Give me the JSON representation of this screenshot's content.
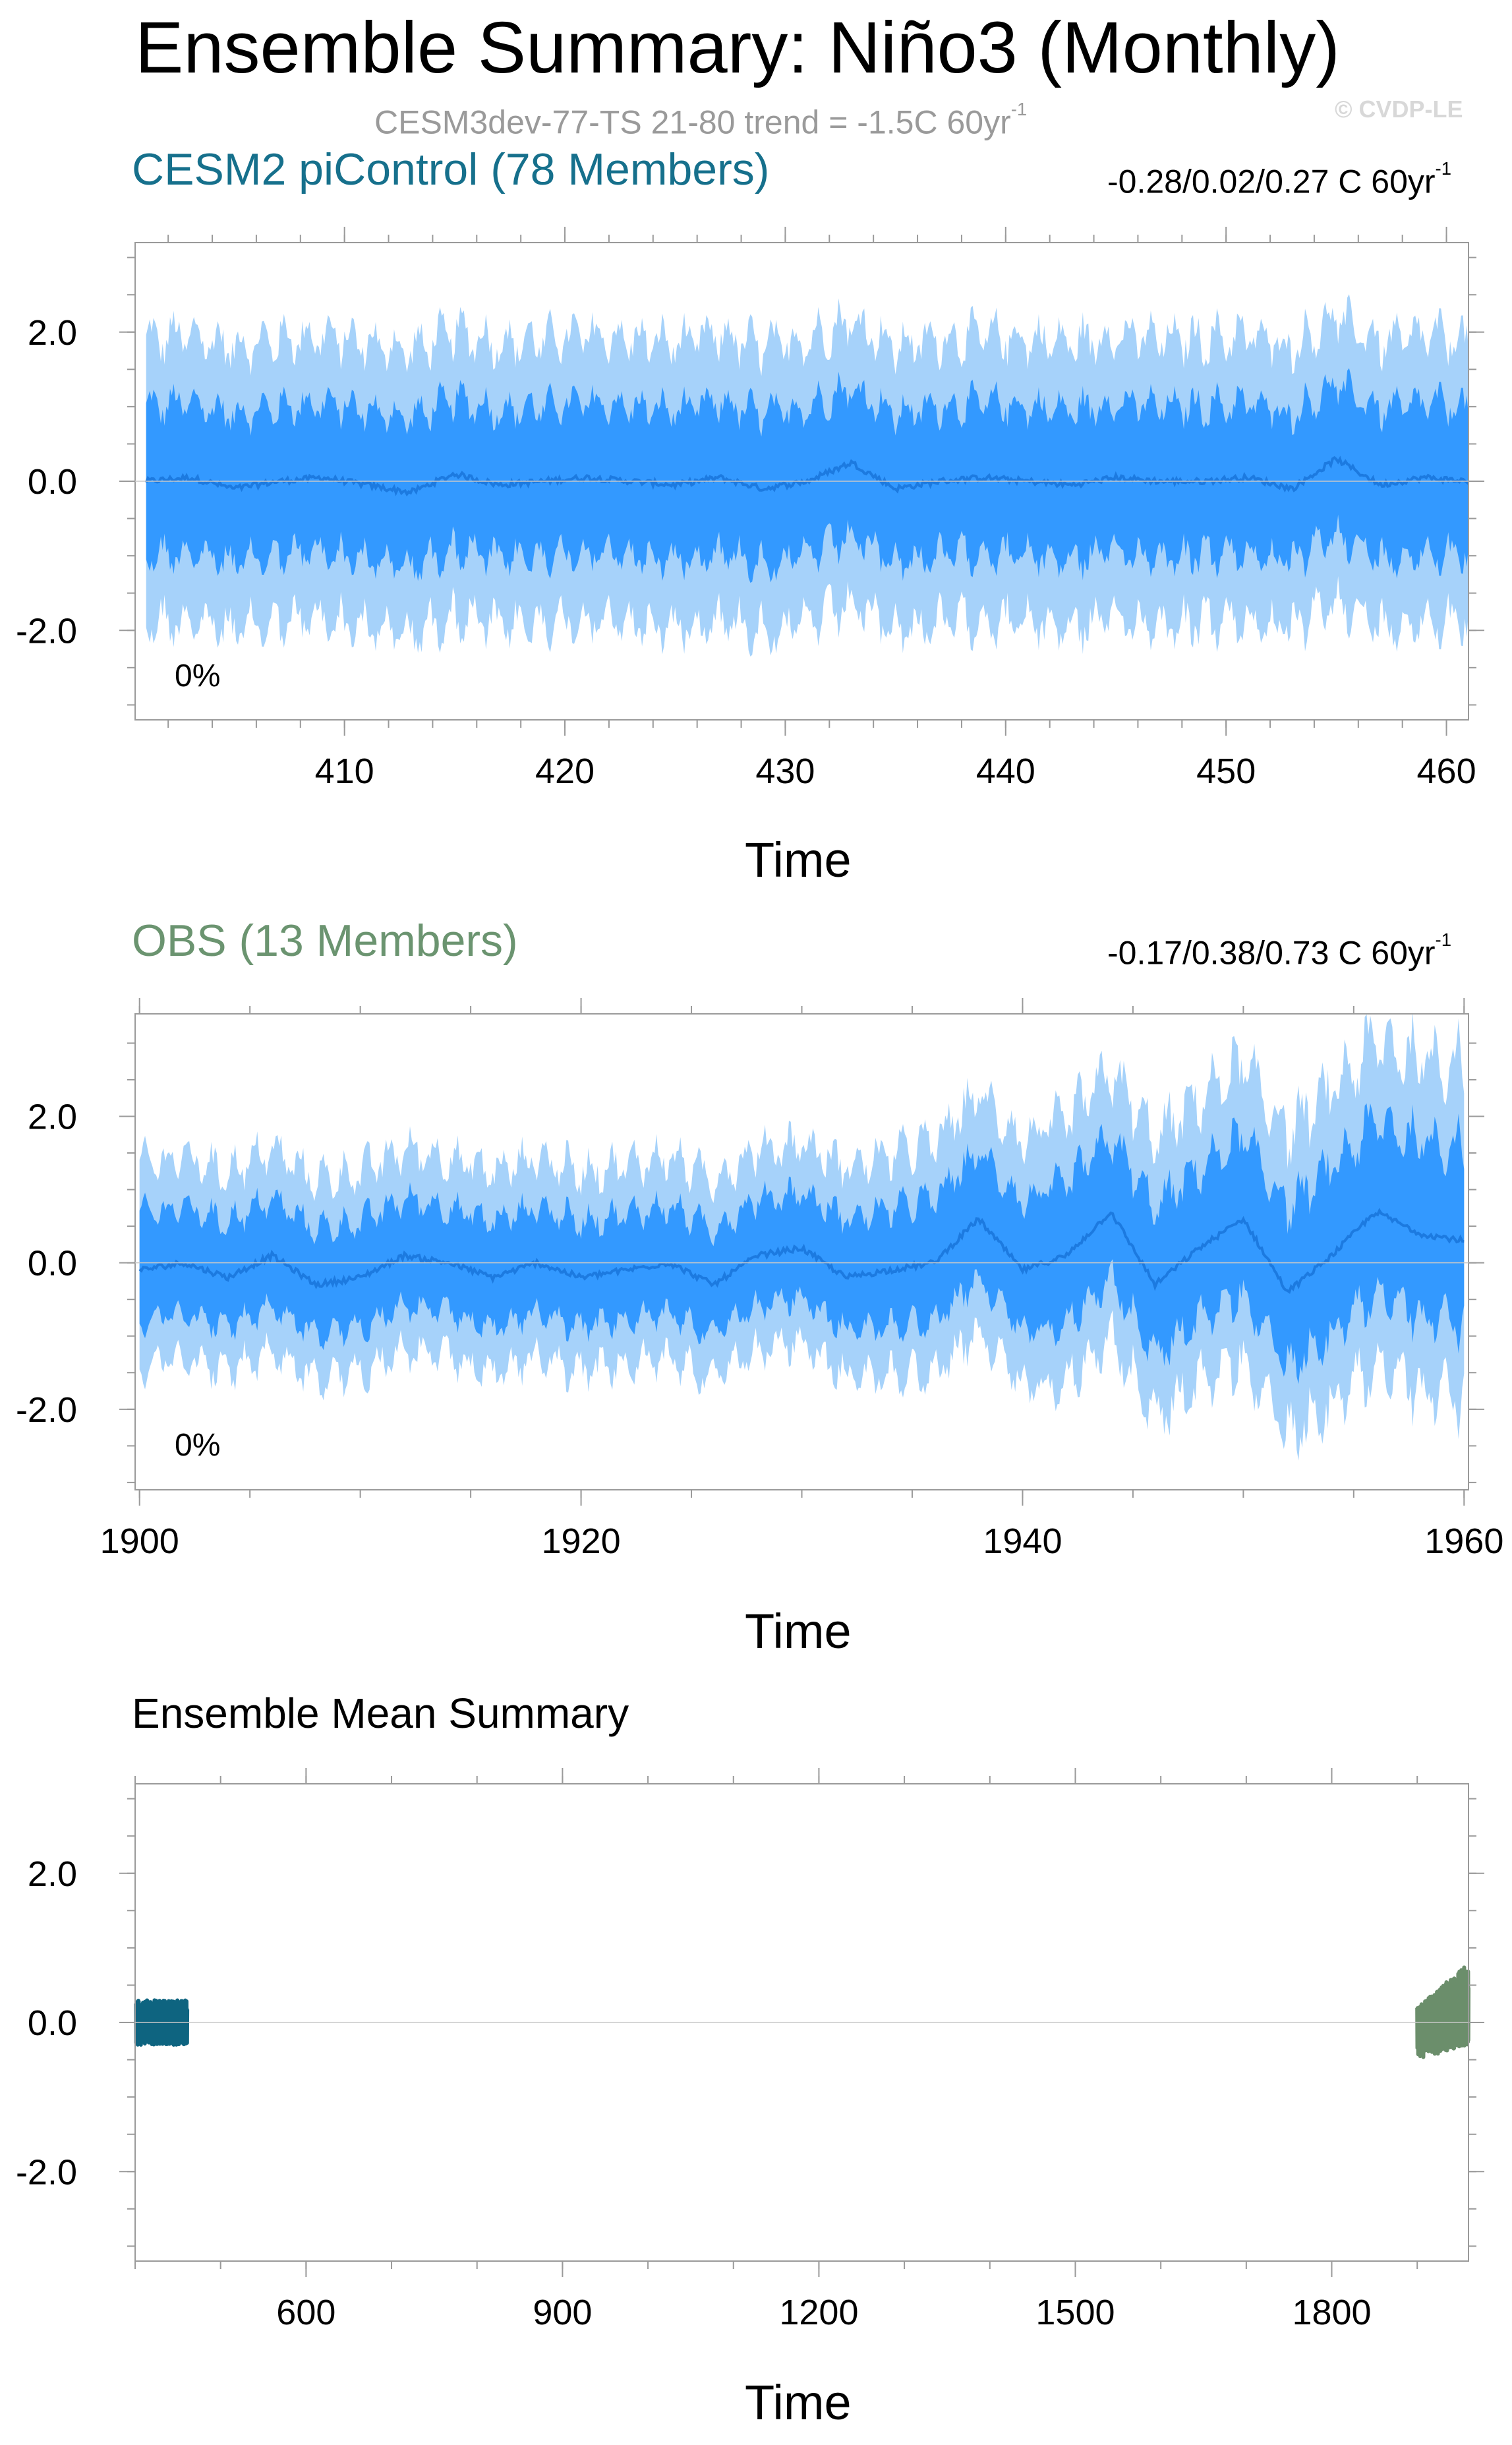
{
  "header": {
    "title": "Ensemble Summary: Niño3 (Monthly)",
    "subtitle": "CESM3dev-77-TS 21-80 trend = -1.5C 60yr",
    "subtitle_exp": "-1",
    "watermark": "© CVDP-LE"
  },
  "colors": {
    "band_outer": "#a6d2fa",
    "band_inner": "#3399ff",
    "mean_line": "#1c7ae0",
    "cesm_series": "#0e6480",
    "obs_series": "#6b8e6b",
    "frame": "#9a9a9a"
  },
  "panels": [
    {
      "title": "CESM2 piControl (78 Members)",
      "title_color": "#16708c",
      "trend": "-0.28/0.02/0.27 C 60yr",
      "trend_exp": "-1",
      "percent": "0%",
      "xlabel": "Time",
      "xticks": [
        "410",
        "420",
        "430",
        "440",
        "450",
        "460"
      ],
      "yticks": [
        "2.0",
        "0.0",
        "-2.0"
      ]
    },
    {
      "title": "OBS (13 Members)",
      "title_color": "#6b9470",
      "trend": "-0.17/0.38/0.73 C 60yr",
      "trend_exp": "-1",
      "percent": "0%",
      "xlabel": "Time",
      "xticks": [
        "1900",
        "1920",
        "1940",
        "1960"
      ],
      "yticks": [
        "2.0",
        "0.0",
        "-2.0"
      ]
    },
    {
      "title": "Ensemble Mean Summary",
      "xlabel": "Time",
      "xticks": [
        "600",
        "900",
        "1200",
        "1500",
        "1800"
      ],
      "yticks": [
        "2.0",
        "0.0",
        "-2.0"
      ]
    }
  ],
  "chart_data": [
    {
      "type": "area",
      "title": "CESM2 piControl (78 Members)",
      "xlabel": "Time",
      "xlim": [
        400.5,
        461
      ],
      "ylim": [
        -3.2,
        3.2
      ],
      "grid": false,
      "series": [
        {
          "name": "ensemble mean",
          "x": [
            401,
            403,
            405,
            407,
            409,
            411,
            413,
            415,
            417,
            419,
            421,
            423,
            425,
            427,
            429,
            431,
            433,
            435,
            437,
            439,
            441,
            443,
            445,
            447,
            449,
            451,
            453,
            455,
            457,
            459,
            461
          ],
          "values": [
            0.0,
            0.05,
            -0.1,
            0.0,
            0.05,
            -0.05,
            -0.15,
            0.1,
            -0.05,
            0.0,
            0.05,
            0.0,
            -0.05,
            0.05,
            -0.1,
            0.0,
            0.25,
            -0.1,
            0.0,
            0.05,
            0.0,
            -0.05,
            0.05,
            0.0,
            0.0,
            0.05,
            -0.1,
            0.3,
            -0.05,
            0.05,
            0.0
          ]
        },
        {
          "name": "inner spread",
          "lower": -1.0,
          "upper": 1.0
        },
        {
          "name": "outer spread",
          "lower": -1.9,
          "upper": 1.9
        }
      ],
      "trend_range": "-0.28/0.02/0.27 C 60yr-1",
      "percent": "0%"
    },
    {
      "type": "area",
      "title": "OBS (13 Members)",
      "xlabel": "Time",
      "xlim": [
        1899.8,
        1960.2
      ],
      "ylim": [
        -3.1,
        3.4
      ],
      "grid": false,
      "series": [
        {
          "name": "ensemble mean",
          "x": [
            1900,
            1902,
            1904,
            1906,
            1908,
            1910,
            1912,
            1914,
            1916,
            1918,
            1920,
            1922,
            1924,
            1926,
            1928,
            1930,
            1932,
            1934,
            1936,
            1938,
            1940,
            1942,
            1944,
            1946,
            1948,
            1950,
            1952,
            1954,
            1956,
            1958,
            1960
          ],
          "values": [
            -0.1,
            0.0,
            -0.2,
            0.1,
            -0.3,
            -0.2,
            0.1,
            0.0,
            -0.2,
            0.0,
            -0.2,
            -0.1,
            0.0,
            -0.3,
            0.1,
            0.2,
            -0.2,
            -0.1,
            0.0,
            0.6,
            -0.1,
            0.1,
            0.7,
            -0.3,
            0.2,
            0.6,
            -0.4,
            0.1,
            0.7,
            0.4,
            0.3
          ]
        },
        {
          "name": "inner spread",
          "lower": -0.9,
          "upper": 0.9
        },
        {
          "name": "outer spread",
          "lower": -1.6,
          "upper": 1.6
        }
      ],
      "trend_range": "-0.17/0.38/0.73 C 60yr-1",
      "percent": "0%"
    },
    {
      "type": "line",
      "title": "Ensemble Mean Summary",
      "xlabel": "Time",
      "xlim": [
        400,
        1960
      ],
      "ylim": [
        -3.2,
        3.2
      ],
      "grid": false,
      "series": [
        {
          "name": "CESM2 piControl",
          "x_range": [
            401,
            461
          ],
          "lower": -0.3,
          "upper": 0.3
        },
        {
          "name": "OBS",
          "x_range": [
            1900,
            1960
          ],
          "lower": -0.5,
          "upper": 0.8
        }
      ]
    }
  ]
}
